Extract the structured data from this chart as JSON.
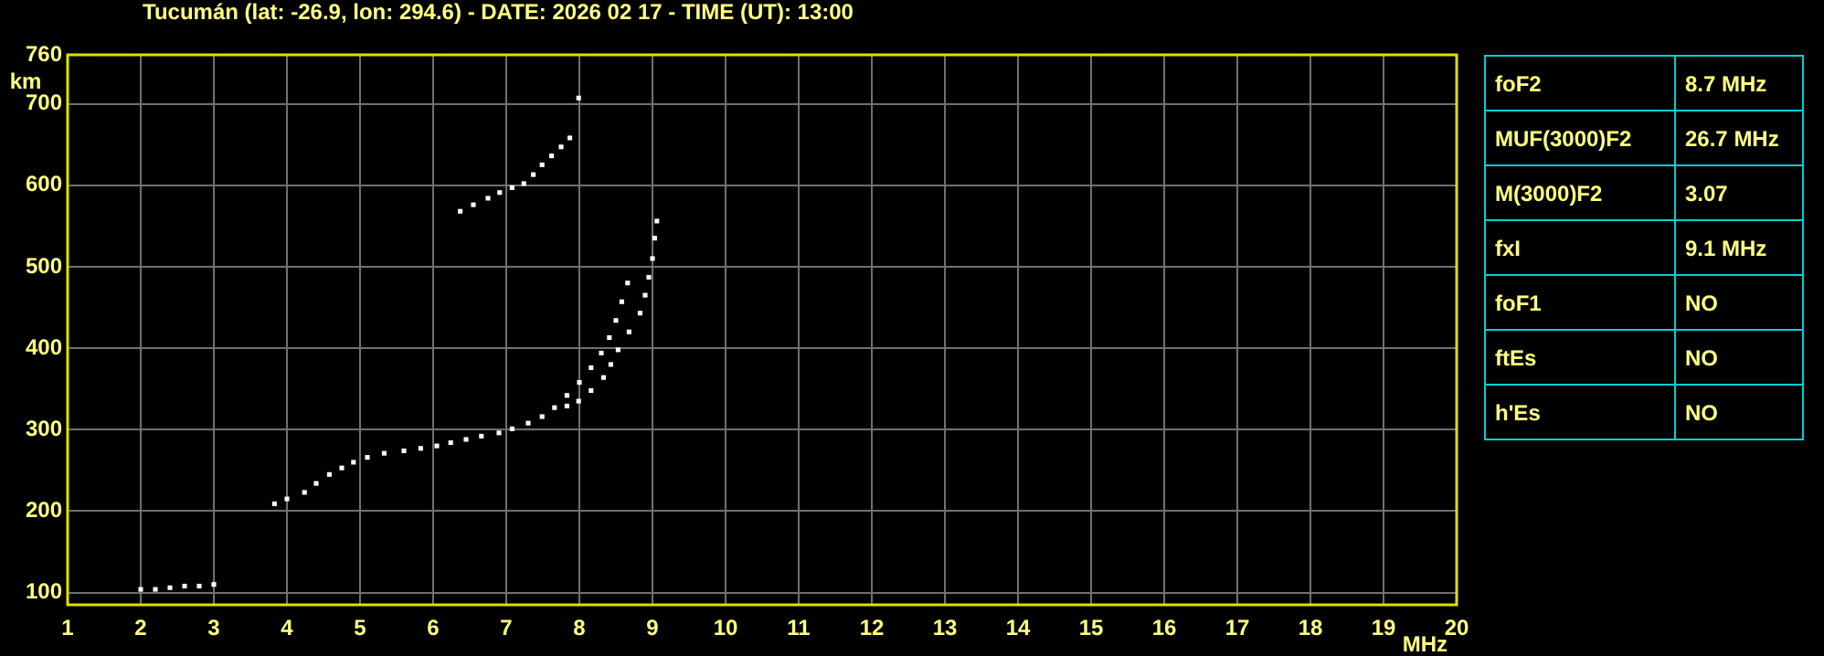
{
  "chart_data": [
    {
      "type": "scatter",
      "title": "Tucumán (lat: -26.9, lon: 294.6) - DATE: 2026 02 17 - TIME (UT): 13:00",
      "xlabel": "MHz",
      "ylabel": "km",
      "xlim": [
        1,
        20
      ],
      "ylim": [
        85,
        760
      ],
      "xticks": [
        1,
        2,
        3,
        4,
        5,
        6,
        7,
        8,
        9,
        10,
        11,
        12,
        13,
        14,
        15,
        16,
        17,
        18,
        19,
        20
      ],
      "yticks": [
        100,
        200,
        300,
        400,
        500,
        600,
        700,
        760
      ],
      "grid": true,
      "marker": "square",
      "series": [
        {
          "color": "#ffffff",
          "x": [
            3.83,
            4.0,
            4.24,
            4.4,
            4.58,
            4.75,
            4.91,
            5.1,
            5.33,
            5.6,
            5.83,
            6.05,
            6.24,
            6.45,
            6.66,
            6.9,
            7.08,
            7.3,
            7.49,
            7.66,
            7.83,
            8.0,
            8.16,
            8.3,
            8.41,
            8.5,
            8.58,
            8.66
          ],
          "values": [
            209,
            215,
            223,
            234,
            245,
            253,
            260,
            266,
            271,
            274,
            277,
            280,
            284,
            288,
            292,
            296,
            301,
            308,
            316,
            327,
            342,
            358,
            376,
            394,
            413,
            434,
            457,
            480
          ]
        },
        {
          "color": "#ffffff",
          "x": [
            7.83,
            7.99,
            8.16,
            8.33,
            8.43,
            8.53,
            8.68,
            8.83,
            8.9,
            8.95,
            9.0,
            9.03,
            9.06
          ],
          "values": [
            329,
            335,
            348,
            364,
            380,
            398,
            420,
            443,
            465,
            487,
            510,
            535,
            556
          ]
        },
        {
          "color": "#ffffff",
          "x": [
            6.37,
            6.55,
            6.75,
            6.91,
            7.08,
            7.24,
            7.37,
            7.49,
            7.62,
            7.75,
            7.87,
            7.99
          ],
          "values": [
            568,
            576,
            584,
            591,
            597,
            602,
            613,
            625,
            636,
            647,
            658,
            707
          ]
        },
        {
          "color": "#ffffff",
          "x": [
            2.0,
            2.2,
            2.4,
            2.6,
            2.8,
            3.0
          ],
          "values": [
            104,
            104,
            106,
            108,
            108,
            110
          ]
        }
      ]
    },
    {
      "type": "other",
      "annotations": [
        "foF2",
        "8.7 MHz",
        "MUF(3000)F2",
        "26.7 MHz",
        "M(3000)F2",
        "3.07",
        "fxI",
        "9.1 MHz",
        "foF1",
        "NO",
        "ftEs",
        "NO",
        "h'Es",
        "NO"
      ]
    }
  ]
}
